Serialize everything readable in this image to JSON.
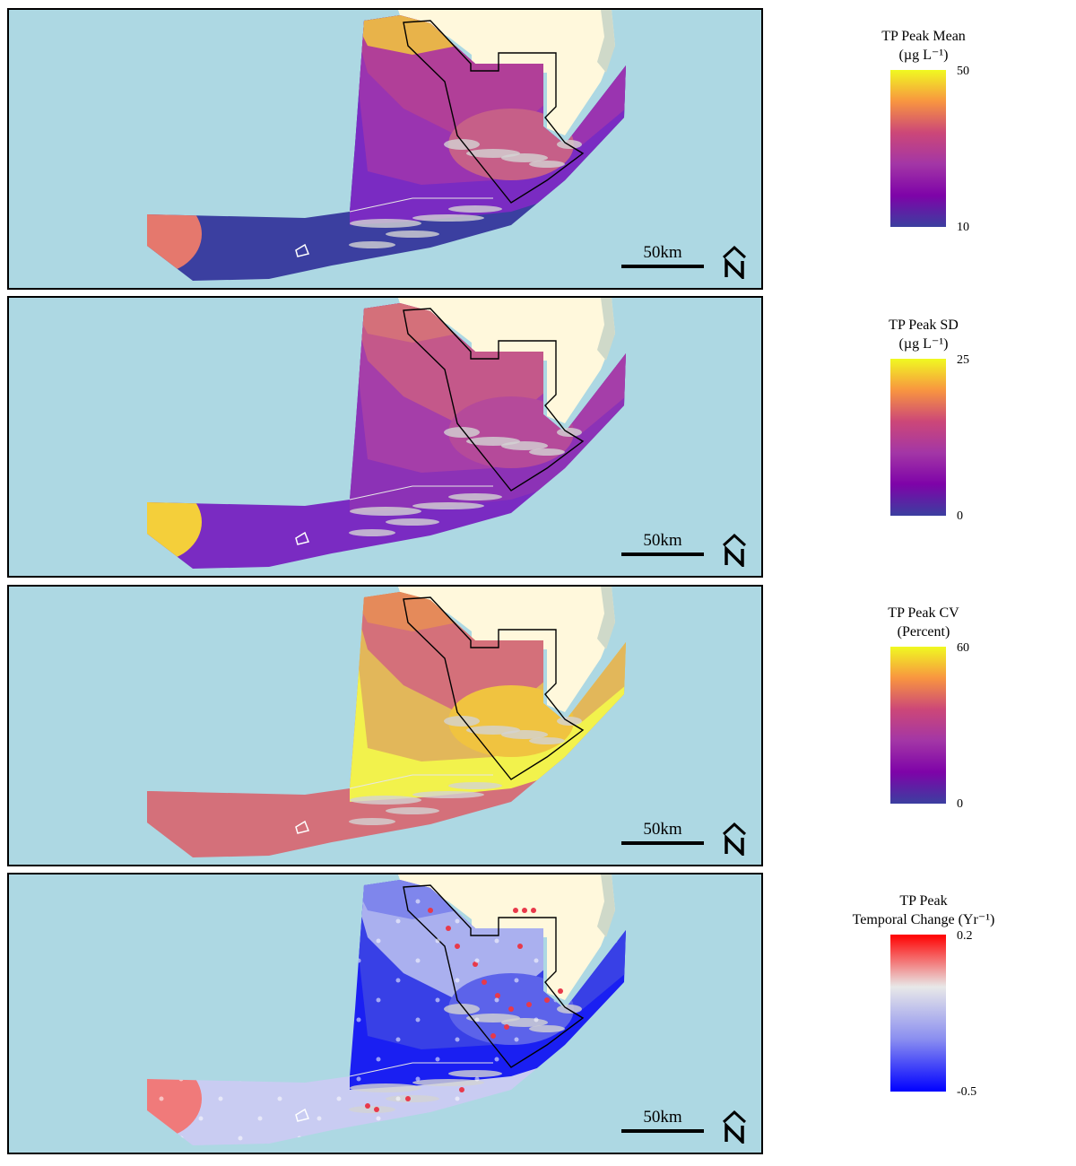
{
  "panels": [
    {
      "id": "mean",
      "scale_label": "50km",
      "legend": {
        "title": "TP Peak Mean",
        "units": "(µg L⁻¹)",
        "max": "50",
        "min": "10",
        "gradient": [
          "#f0f921",
          "#f89540",
          "#cc4778",
          "#a336a6",
          "#7e03a8",
          "#3b3fa0"
        ]
      },
      "fills": {
        "north_band": "#e8b34a",
        "upper": "#b13f98",
        "mid": "#9a34b0",
        "lower": "#7a2bc2",
        "outer": "#3b3fa0",
        "west_tip": "#e5786d",
        "bay": "#c65f88"
      }
    },
    {
      "id": "sd",
      "scale_label": "50km",
      "legend": {
        "title": "TP Peak SD",
        "units": "(µg L⁻¹)",
        "max": "25",
        "min": "0",
        "gradient": [
          "#f0f921",
          "#f89540",
          "#cc4778",
          "#a336a6",
          "#7e03a8",
          "#3b3fa0"
        ]
      },
      "fills": {
        "north_band": "#d4707a",
        "upper": "#c4588a",
        "mid": "#a53ea9",
        "lower": "#8c32b6",
        "outer": "#7a2bc2",
        "west_tip": "#f4cf3a",
        "bay": "#b54a9a"
      }
    },
    {
      "id": "cv",
      "scale_label": "50km",
      "legend": {
        "title": "TP Peak CV",
        "units": "(Percent)",
        "max": "60",
        "min": "0",
        "gradient": [
          "#f0f921",
          "#f89540",
          "#cc4778",
          "#a336a6",
          "#7e03a8",
          "#3b3fa0"
        ]
      },
      "fills": {
        "north_band": "#e58a5a",
        "upper": "#d4707a",
        "mid": "#e2b75a",
        "lower": "#f2f24c",
        "outer": "#d4707a",
        "west_tip": "#d4707a",
        "bay": "#f0c340"
      }
    },
    {
      "id": "trend",
      "scale_label": "50km",
      "legend": {
        "title": "TP Peak",
        "units": "Temporal Change (Yr⁻¹)",
        "max": "0.2",
        "min": "-0.5",
        "gradient": [
          "#ff0000",
          "#e8e8e8",
          "#8a8ef0",
          "#0000ff"
        ]
      },
      "fills": {
        "north_band": "#7f86ec",
        "upper": "#aab0ef",
        "mid": "#3840e6",
        "lower": "#1a1ff2",
        "outer": "#c9ccf2",
        "west_tip": "#f07a7a",
        "bay": "#5c63ea"
      }
    }
  ],
  "colors": {
    "water": "#add8e3",
    "land": "#fff8dc",
    "boundary": "#000000",
    "islands": "#d3d3d3"
  }
}
